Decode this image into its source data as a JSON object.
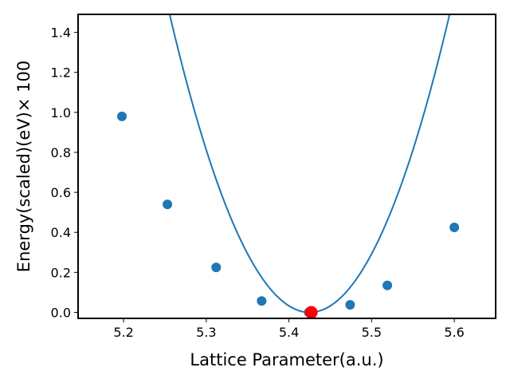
{
  "chart_data": {
    "type": "scatter",
    "title": "",
    "xlabel": "Lattice Parameter(a.u.)",
    "ylabel": "Energy(scaled)(eV)× 100",
    "xlim": [
      5.145,
      5.65
    ],
    "ylim": [
      -0.03,
      1.49
    ],
    "x_ticks": [
      5.2,
      5.3,
      5.4,
      5.5,
      5.6
    ],
    "x_tick_labels": [
      "5.2",
      "5.3",
      "5.4",
      "5.5",
      "5.6"
    ],
    "y_ticks": [
      0.0,
      0.2,
      0.4,
      0.6,
      0.8,
      1.0,
      1.2,
      1.4
    ],
    "y_tick_labels": [
      "0.0",
      "0.2",
      "0.4",
      "0.6",
      "0.8",
      "1.0",
      "1.2",
      "1.4"
    ],
    "grid": false,
    "legend": "none",
    "series": [
      {
        "kind": "points",
        "color": "#1f77b4",
        "x": [
          5.198,
          5.253,
          5.312,
          5.367,
          5.424,
          5.474,
          5.519,
          5.6
        ],
        "y": [
          0.98,
          0.54,
          0.225,
          0.057,
          0.0,
          0.038,
          0.135,
          0.425
        ]
      },
      {
        "kind": "fit-curve",
        "color": "#1f77b4",
        "model": "quadratic",
        "coefficients": {
          "a": 52.0,
          "x0": 5.425,
          "c": 0.0
        },
        "x_range": [
          5.145,
          5.65
        ]
      },
      {
        "kind": "minimum",
        "color": "#ff0000",
        "x": [
          5.427
        ],
        "y": [
          0.0
        ]
      }
    ]
  }
}
